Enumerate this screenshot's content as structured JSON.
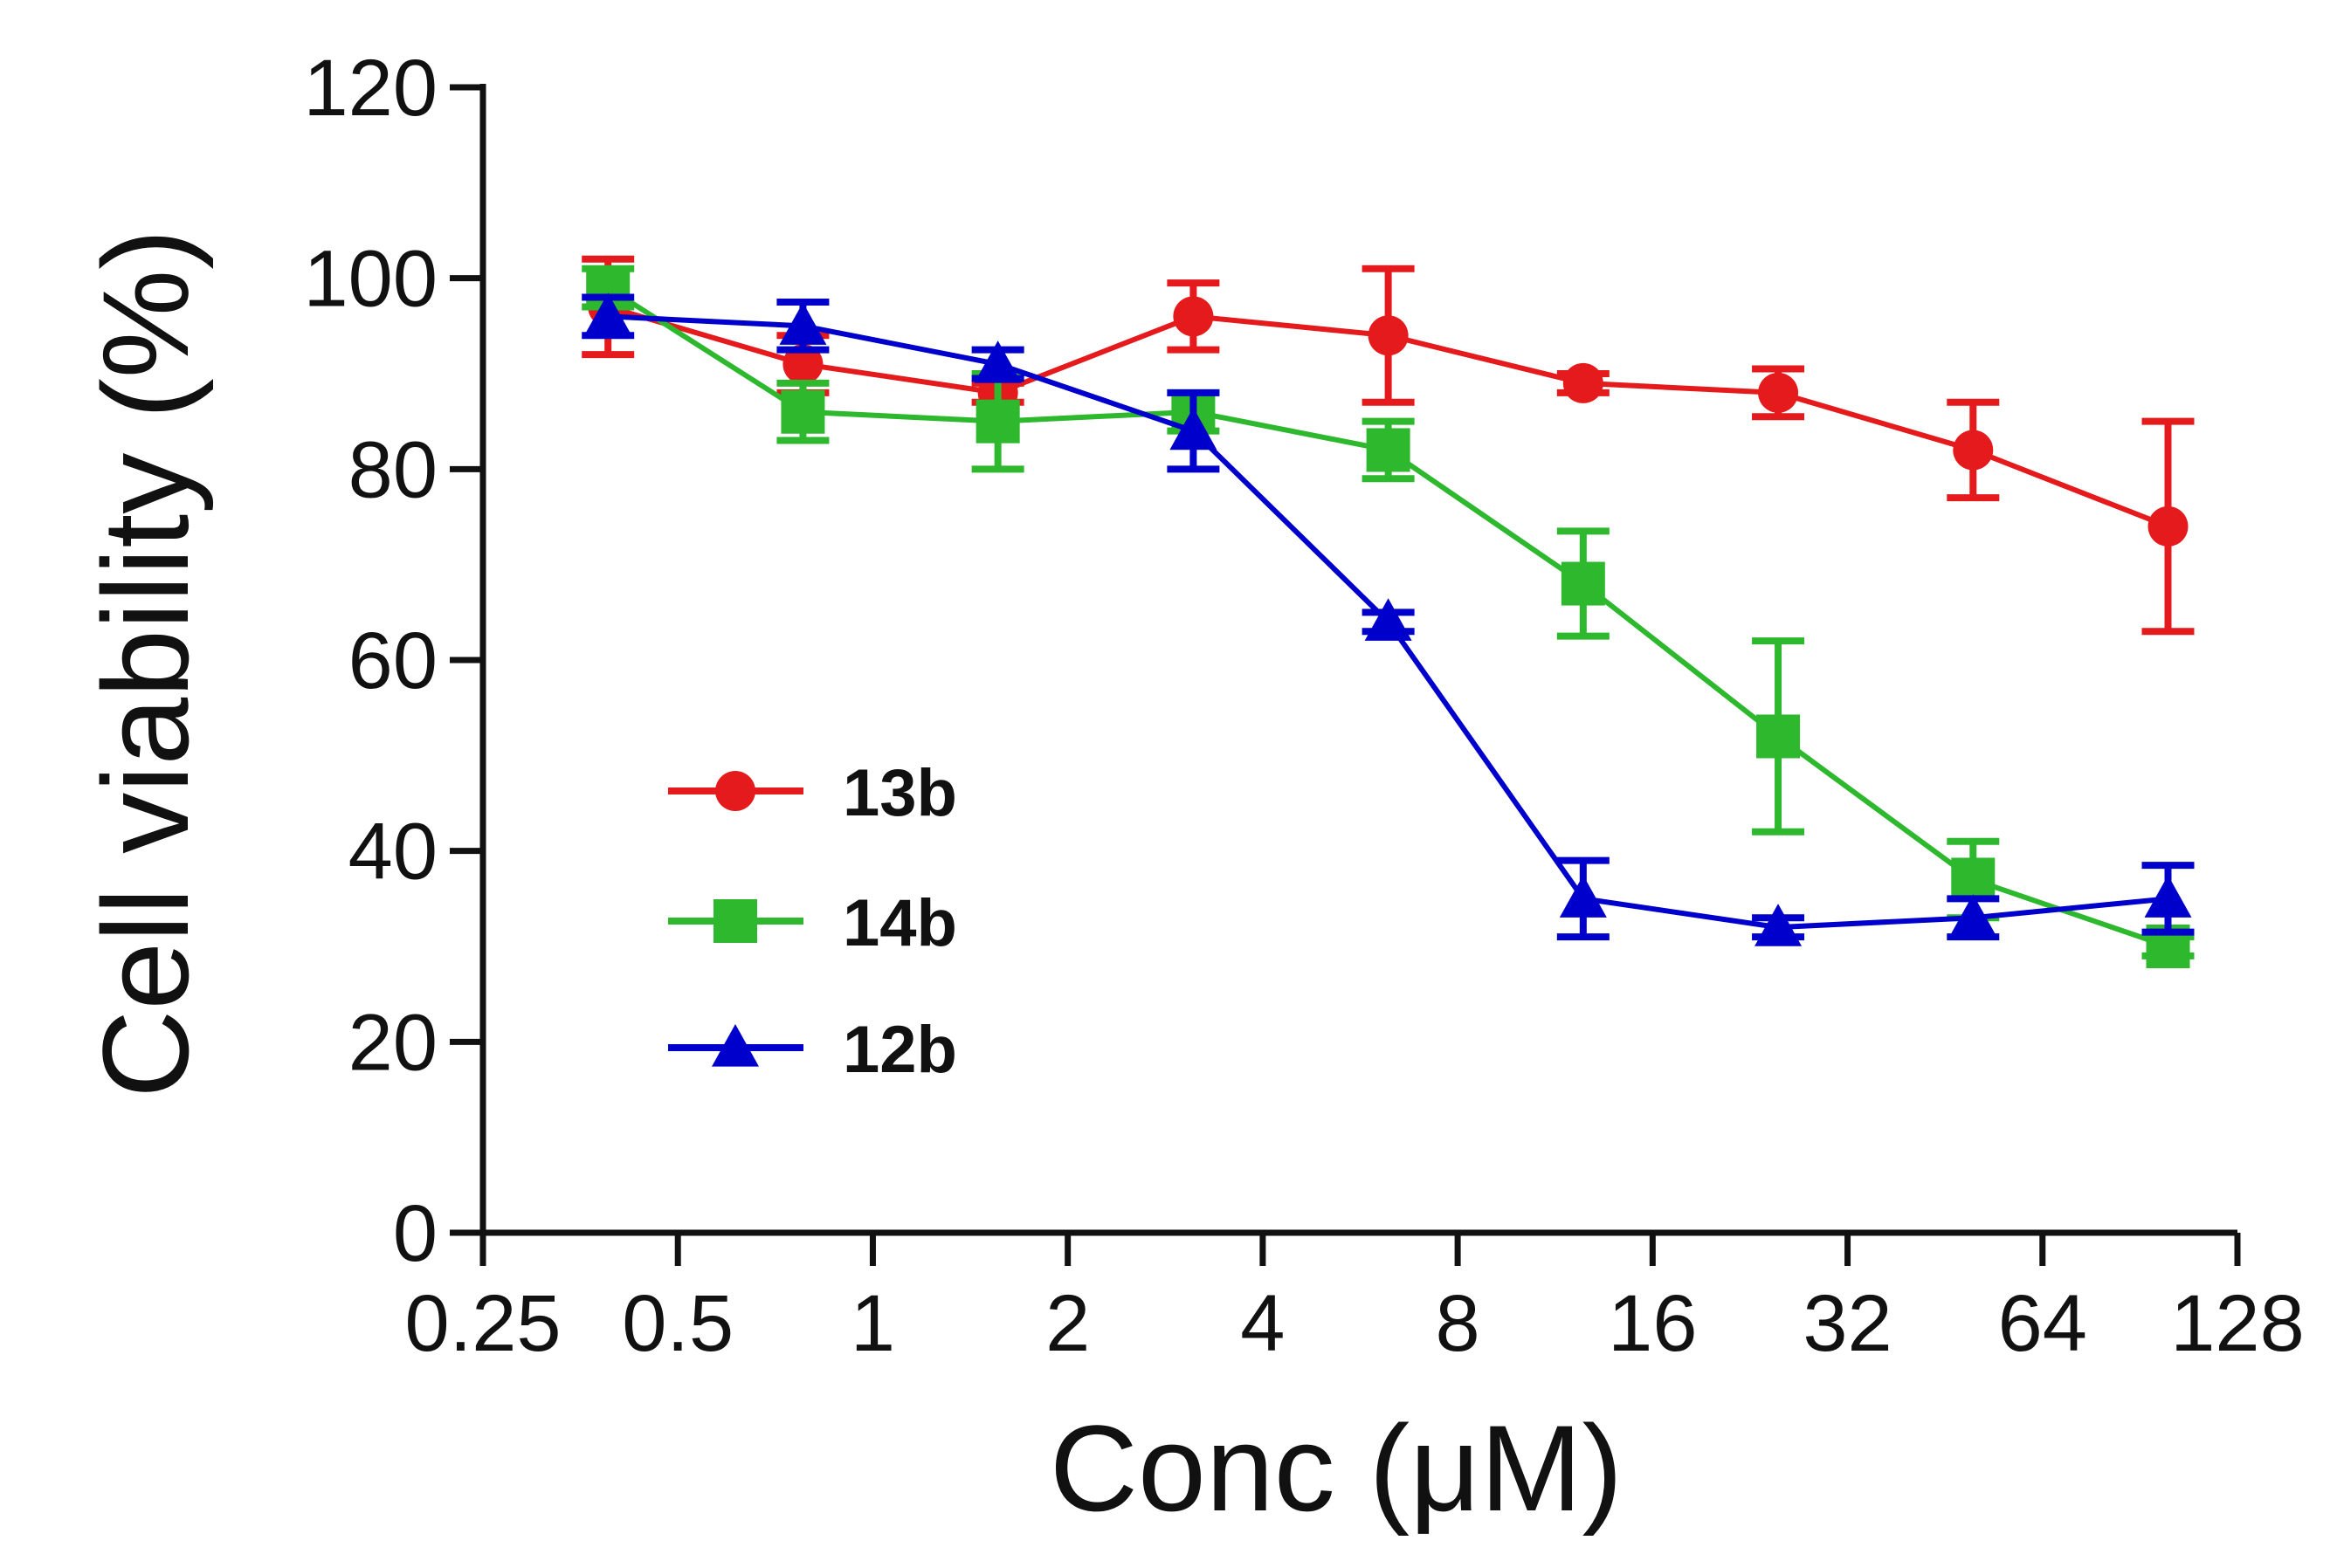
{
  "chart_data": {
    "type": "line",
    "ylabel": "Cell viability (%)",
    "xlabel": "Conc (μM)",
    "x_scale": "log2",
    "x_ticks": [
      0.25,
      0.5,
      1,
      2,
      4,
      8,
      16,
      32,
      64,
      128
    ],
    "x_tick_labels": [
      "0.25",
      "0.5",
      "1",
      "2",
      "4",
      "8",
      "16",
      "32",
      "64",
      "128"
    ],
    "xlim": [
      0.25,
      128
    ],
    "ylim": [
      0,
      120
    ],
    "y_ticks": [
      0,
      20,
      40,
      60,
      80,
      100,
      120
    ],
    "y_tick_labels": [
      "0",
      "20",
      "40",
      "60",
      "80",
      "100",
      "120"
    ],
    "legend_position": "lower-left inside plot",
    "x": [
      0.39,
      0.78,
      1.56,
      3.125,
      6.25,
      12.5,
      25,
      50,
      100
    ],
    "series": [
      {
        "name": "13b",
        "color": "#e41a1c",
        "marker": "circle",
        "values": [
          97,
          91,
          88,
          96,
          94,
          89,
          88,
          82,
          74
        ],
        "errors": [
          5,
          3,
          1,
          3.5,
          7,
          1,
          2.5,
          5,
          11
        ]
      },
      {
        "name": "14b",
        "color": "#2eb82e",
        "marker": "square",
        "values": [
          99,
          86,
          85,
          86,
          82,
          68,
          52,
          37,
          30
        ],
        "errors": [
          2,
          3,
          5,
          2,
          3,
          5.5,
          10,
          4,
          1
        ]
      },
      {
        "name": "12b",
        "color": "#0000cc",
        "marker": "triangle",
        "values": [
          96,
          95,
          91,
          84,
          64,
          35,
          32,
          33,
          35
        ],
        "errors": [
          2,
          2.5,
          1.5,
          4,
          1,
          4,
          1,
          2,
          3.5
        ]
      }
    ]
  }
}
